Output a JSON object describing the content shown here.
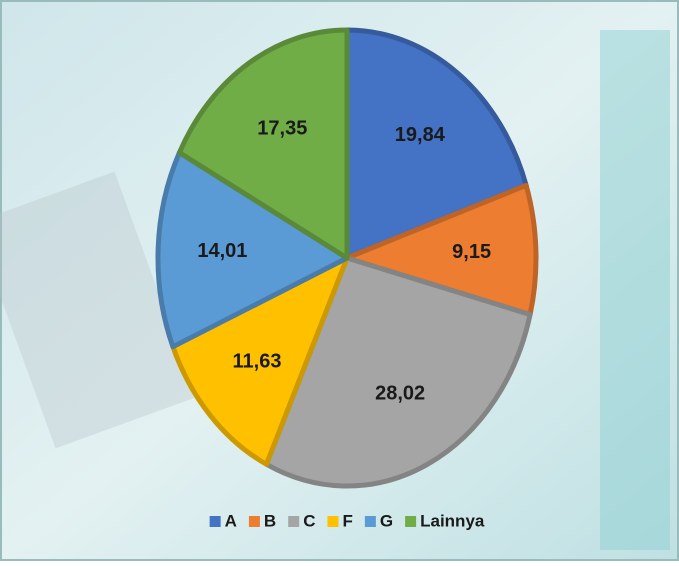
{
  "chart_data": {
    "type": "pie",
    "categories": [
      "A",
      "B",
      "C",
      "F",
      "G",
      "Lainnya"
    ],
    "values": [
      19.84,
      9.15,
      28.02,
      11.63,
      14.01,
      17.35
    ],
    "value_labels": [
      "19,84",
      "9,15",
      "28,02",
      "11,63",
      "14,01",
      "17,35"
    ],
    "colors": [
      "#4472c4",
      "#ed7d31",
      "#a5a5a5",
      "#ffc000",
      "#5b9bd5",
      "#70ad47"
    ],
    "legend": "bottom"
  }
}
